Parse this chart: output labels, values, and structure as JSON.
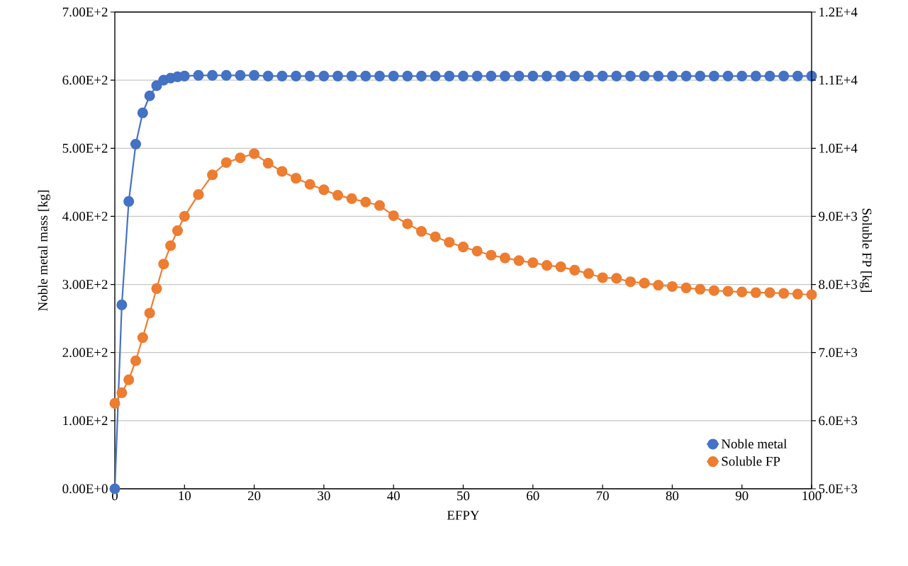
{
  "chart_data": {
    "type": "line",
    "xlabel": "EFPY",
    "ylabel": "Noble metal mass [kg]",
    "y2label": "Soluble FP [kg]",
    "x": [
      0,
      1,
      2,
      3,
      4,
      5,
      6,
      7,
      8,
      9,
      10,
      12,
      14,
      16,
      18,
      20,
      22,
      24,
      26,
      28,
      30,
      32,
      34,
      36,
      38,
      40,
      42,
      44,
      46,
      48,
      50,
      52,
      54,
      56,
      58,
      60,
      62,
      64,
      66,
      68,
      70,
      72,
      74,
      76,
      78,
      80,
      82,
      84,
      86,
      88,
      90,
      92,
      94,
      96,
      98,
      100
    ],
    "series": [
      {
        "name": "Noble metal",
        "color": "#4472c4",
        "values": [
          0,
          270,
          422,
          506,
          552,
          577,
          592,
          600,
          603,
          605,
          606,
          607,
          607,
          607,
          607,
          607,
          606,
          606,
          606,
          606,
          606,
          606,
          606,
          606,
          606,
          606,
          606,
          606,
          606,
          606,
          606,
          606,
          606,
          606,
          606,
          606,
          606,
          606,
          606,
          606,
          606,
          606,
          606,
          606,
          606,
          606,
          606,
          606,
          606,
          606,
          606,
          606,
          606,
          606,
          606,
          606
        ]
      },
      {
        "name": "Soluble FP",
        "color": "#ed7d31",
        "axis": "y2",
        "values": [
          6254,
          6410,
          6600,
          6880,
          7220,
          7580,
          7940,
          8300,
          8570,
          8790,
          9000,
          9320,
          9610,
          9790,
          9860,
          9920,
          9780,
          9660,
          9560,
          9470,
          9390,
          9310,
          9260,
          9210,
          9160,
          9010,
          8890,
          8780,
          8700,
          8620,
          8550,
          8490,
          8430,
          8390,
          8350,
          8320,
          8280,
          8260,
          8210,
          8160,
          8100,
          8090,
          8040,
          8020,
          7990,
          7970,
          7950,
          7930,
          7910,
          7900,
          7890,
          7880,
          7880,
          7870,
          7860,
          7850
        ]
      }
    ],
    "xlim": [
      0,
      100
    ],
    "xticks": [
      0,
      10,
      20,
      30,
      40,
      50,
      60,
      70,
      80,
      90,
      100
    ],
    "ylim": [
      0,
      700
    ],
    "yticks": [
      {
        "value": 0,
        "label": "0.00E+0"
      },
      {
        "value": 100,
        "label": "1.00E+2"
      },
      {
        "value": 200,
        "label": "2.00E+2"
      },
      {
        "value": 300,
        "label": "3.00E+2"
      },
      {
        "value": 400,
        "label": "4.00E+2"
      },
      {
        "value": 500,
        "label": "5.00E+2"
      },
      {
        "value": 600,
        "label": "6.00E+2"
      },
      {
        "value": 700,
        "label": "7.00E+2"
      }
    ],
    "y2lim": [
      5000,
      12000
    ],
    "y2ticks": [
      {
        "value": 5000,
        "label": "5.0E+3"
      },
      {
        "value": 6000,
        "label": "6.0E+3"
      },
      {
        "value": 7000,
        "label": "7.0E+3"
      },
      {
        "value": 8000,
        "label": "8.0E+3"
      },
      {
        "value": 9000,
        "label": "9.0E+3"
      },
      {
        "value": 10000,
        "label": "1.0E+4"
      },
      {
        "value": 11000,
        "label": "1.1E+4"
      },
      {
        "value": 12000,
        "label": "1.2E+4"
      }
    ],
    "grid": "y",
    "legend": "bottom right",
    "marker": "circle",
    "line_style": "solid"
  }
}
